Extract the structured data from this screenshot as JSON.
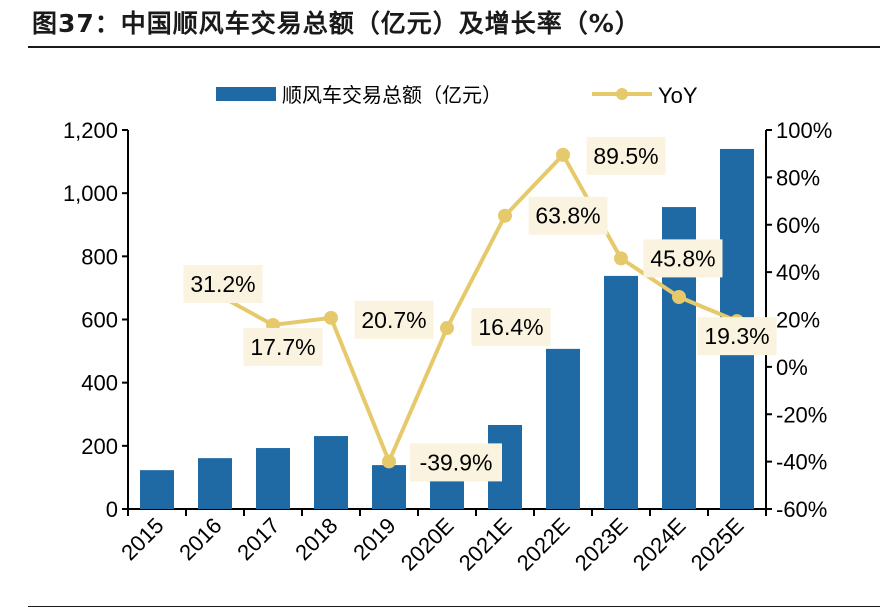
{
  "title": "图37：中国顺风车交易总额（亿元）及增长率（%）",
  "chart_data": {
    "type": "bar+line",
    "categories": [
      "2015",
      "2016",
      "2017",
      "2018",
      "2019",
      "2020E",
      "2021E",
      "2022E",
      "2023E",
      "2024E",
      "2025E"
    ],
    "series": [
      {
        "name": "顺风车交易总额（亿元）",
        "type": "bar",
        "axis": "left",
        "color": "#1f6aa5",
        "values": [
          123,
          161,
          193,
          231,
          139,
          162,
          266,
          507,
          738,
          956,
          1140
        ]
      },
      {
        "name": "YoY",
        "type": "line",
        "axis": "right",
        "color": "#e6c96a",
        "values": [
          null,
          31.2,
          17.7,
          20.7,
          -39.9,
          16.4,
          63.8,
          89.5,
          45.8,
          29.5,
          19.3
        ],
        "labels": [
          null,
          "31.2%",
          "17.7%",
          "20.7%",
          "-39.9%",
          "16.4%",
          "63.8%",
          "89.5%",
          "45.8%",
          null,
          "19.3%"
        ]
      }
    ],
    "left_axis": {
      "ylim": [
        0,
        1200
      ],
      "ticks": [
        "0",
        "200",
        "400",
        "600",
        "800",
        "1,000",
        "1,200"
      ]
    },
    "right_axis": {
      "ylim": [
        -60,
        100
      ],
      "ticks": [
        "-60%",
        "-40%",
        "-20%",
        "0%",
        "20%",
        "40%",
        "60%",
        "80%",
        "100%"
      ]
    },
    "legend": {
      "position": "top",
      "items": [
        "顺风车交易总额（亿元）",
        "YoY"
      ]
    },
    "label_bg": "#faf3e0",
    "grid": false
  }
}
